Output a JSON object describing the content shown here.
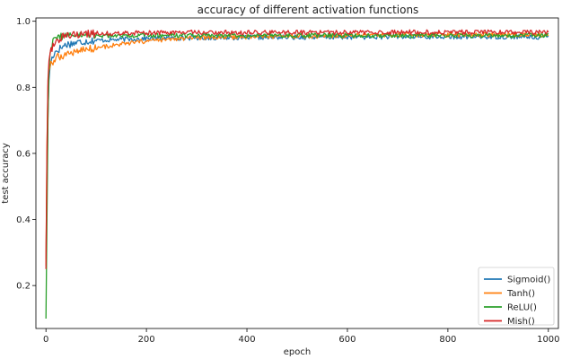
{
  "chart_data": {
    "type": "line",
    "title": "accuracy of different activation functions",
    "xlabel": "epoch",
    "ylabel": "test accuracy",
    "xlim": [
      -20,
      1020
    ],
    "ylim": [
      0.07,
      1.01
    ],
    "xticks": [
      0,
      200,
      400,
      600,
      800,
      1000
    ],
    "xtick_labels": [
      "0",
      "200",
      "400",
      "600",
      "800",
      "1000"
    ],
    "yticks": [
      0.2,
      0.4,
      0.6,
      0.8,
      1.0
    ],
    "ytick_labels": [
      "0.2",
      "0.4",
      "0.6",
      "0.8",
      "1.0"
    ],
    "grid": false,
    "legend_position": "lower-right",
    "series": [
      {
        "name": "Sigmoid()",
        "color": "#1f77b4",
        "x": [
          0,
          2,
          4,
          6,
          8,
          10,
          15,
          20,
          30,
          40,
          60,
          80,
          100,
          150,
          200,
          300,
          400,
          500,
          600,
          700,
          800,
          900,
          1000
        ],
        "y": [
          0.28,
          0.5,
          0.72,
          0.82,
          0.86,
          0.88,
          0.9,
          0.91,
          0.92,
          0.93,
          0.935,
          0.94,
          0.942,
          0.945,
          0.948,
          0.95,
          0.951,
          0.952,
          0.952,
          0.953,
          0.953,
          0.953,
          0.952
        ]
      },
      {
        "name": "Tanh()",
        "color": "#ff7f0e",
        "x": [
          0,
          2,
          4,
          6,
          8,
          10,
          15,
          20,
          30,
          40,
          60,
          80,
          100,
          150,
          200,
          300,
          400,
          500,
          600,
          700,
          800,
          900,
          1000
        ],
        "y": [
          0.26,
          0.62,
          0.8,
          0.85,
          0.86,
          0.87,
          0.88,
          0.89,
          0.895,
          0.9,
          0.91,
          0.915,
          0.92,
          0.93,
          0.94,
          0.95,
          0.953,
          0.955,
          0.956,
          0.958,
          0.958,
          0.959,
          0.958
        ]
      },
      {
        "name": "ReLU()",
        "color": "#2ca02c",
        "x": [
          0,
          2,
          4,
          6,
          8,
          10,
          15,
          20,
          30,
          40,
          60,
          80,
          100,
          150,
          200,
          300,
          400,
          500,
          600,
          700,
          800,
          900,
          1000
        ],
        "y": [
          0.1,
          0.4,
          0.7,
          0.85,
          0.9,
          0.92,
          0.94,
          0.95,
          0.955,
          0.958,
          0.958,
          0.957,
          0.957,
          0.957,
          0.957,
          0.957,
          0.957,
          0.957,
          0.957,
          0.957,
          0.957,
          0.957,
          0.957
        ]
      },
      {
        "name": "Mish()",
        "color": "#d62728",
        "x": [
          0,
          2,
          4,
          6,
          8,
          10,
          15,
          20,
          30,
          40,
          60,
          80,
          100,
          150,
          200,
          300,
          400,
          500,
          600,
          700,
          800,
          900,
          1000
        ],
        "y": [
          0.25,
          0.6,
          0.82,
          0.88,
          0.9,
          0.91,
          0.93,
          0.94,
          0.95,
          0.955,
          0.96,
          0.962,
          0.963,
          0.964,
          0.965,
          0.966,
          0.966,
          0.966,
          0.966,
          0.967,
          0.967,
          0.967,
          0.966
        ]
      }
    ]
  }
}
